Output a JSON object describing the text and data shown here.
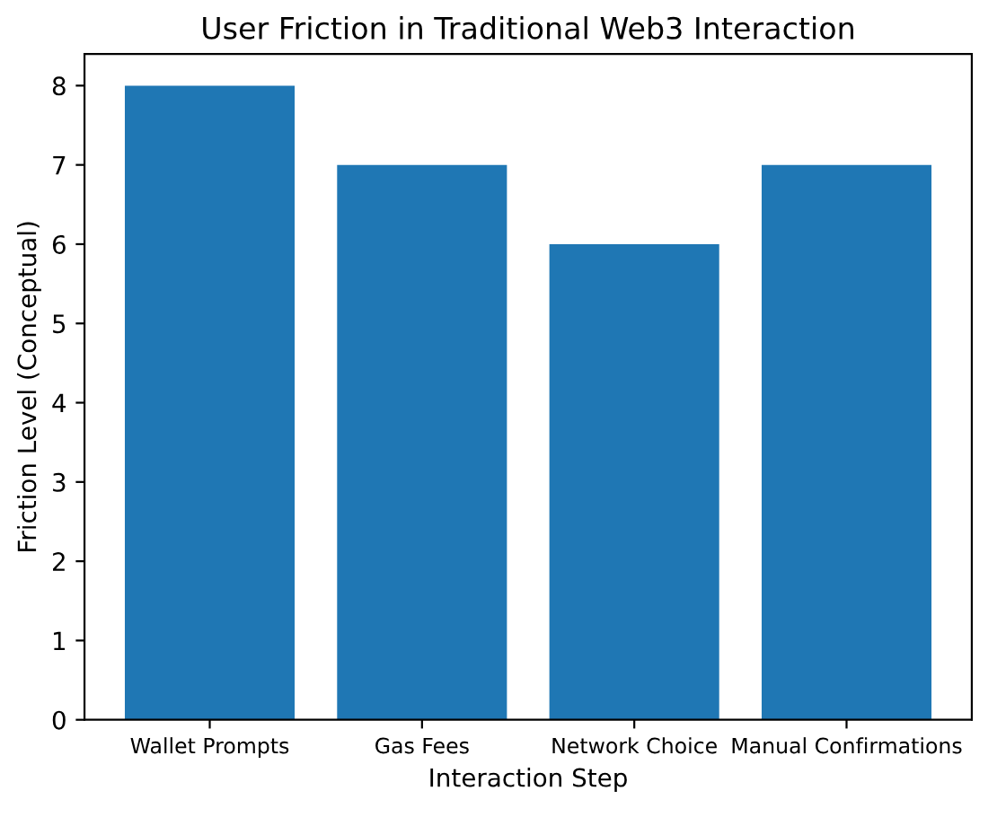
{
  "chart_data": {
    "type": "bar",
    "title": "User Friction in Traditional Web3 Interaction",
    "xlabel": "Interaction Step",
    "ylabel": "Friction Level (Conceptual)",
    "categories": [
      "Wallet Prompts",
      "Gas Fees",
      "Network Choice",
      "Manual Confirmations"
    ],
    "values": [
      8,
      7,
      6,
      7
    ],
    "color": "#1f77b4",
    "ylim": [
      0,
      8.4
    ],
    "yticks": [
      0,
      1,
      2,
      3,
      4,
      5,
      6,
      7,
      8
    ],
    "grid": false,
    "legend": false
  }
}
